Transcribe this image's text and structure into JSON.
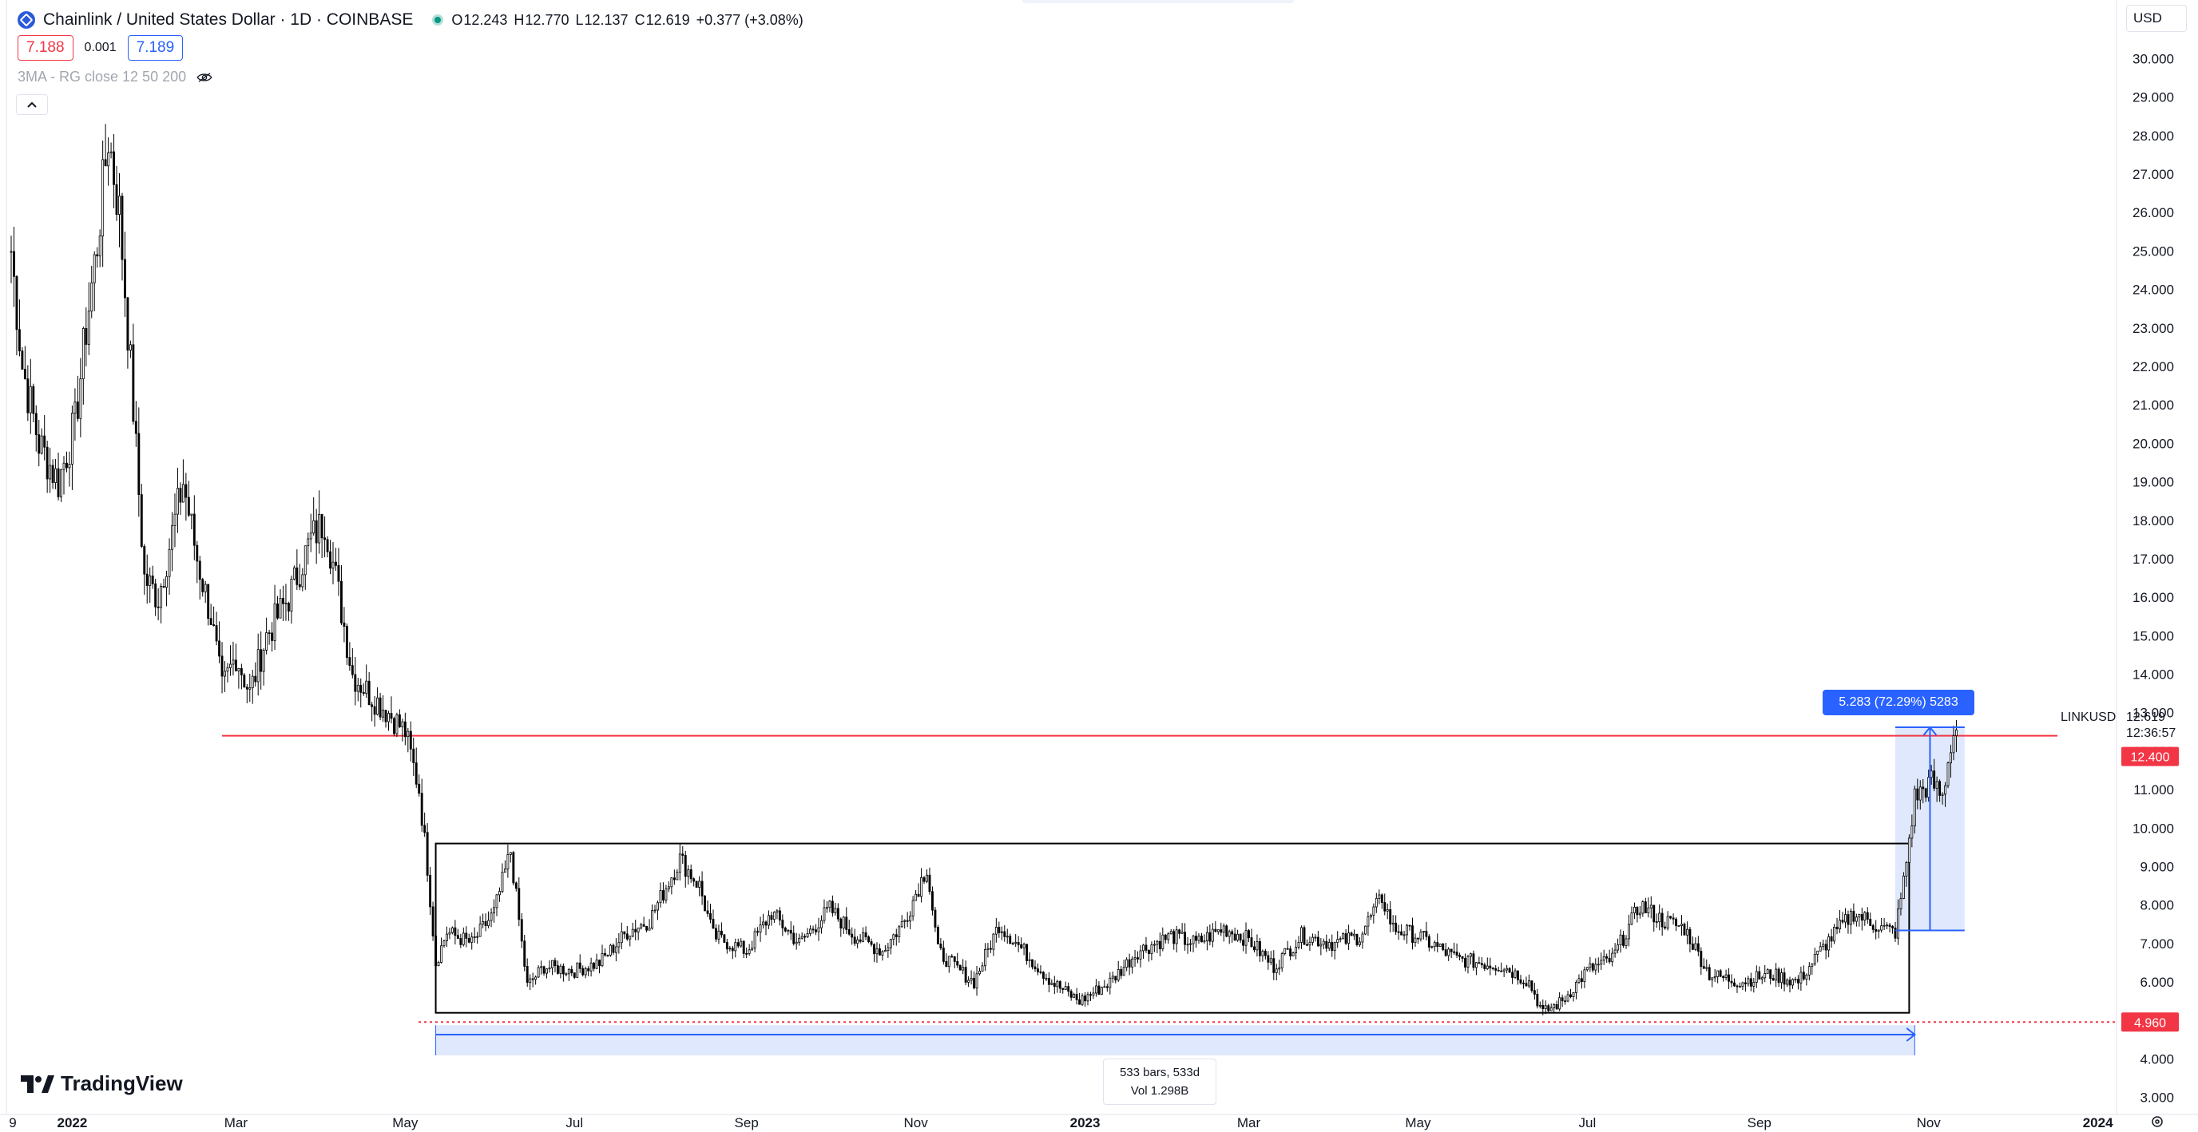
{
  "legend": {
    "symbol_title": "Chainlink / United States Dollar · 1D · COINBASE",
    "ohlc": {
      "o_label": "O",
      "o_value": "12.243",
      "h_label": "H",
      "h_value": "12.770",
      "l_label": "L",
      "l_value": "12.137",
      "c_label": "C",
      "c_value": "12.619",
      "change": "+0.377 (+3.08%)"
    },
    "sell_price": "7.188",
    "spread": "0.001",
    "buy_price": "7.189",
    "indicator": "3MA - RG close 12 50 200"
  },
  "toolbar": {
    "currency": "USD"
  },
  "brand": {
    "name": "TradingView"
  },
  "measurement": {
    "bars_text": "533 bars, 533d",
    "vol_text": "Vol 1.298B",
    "price_change_text": "5.283 (72.29%) 5283"
  },
  "price_axis": {
    "symbol_label": "LINKUSD",
    "last_price": "12.619",
    "countdown": "12:36:57",
    "resistance_label": "12.400",
    "support_label": "4.960"
  },
  "colors": {
    "candle": "#000000",
    "resistance_line": "#f23645",
    "measure_fill": "#dbe5fc",
    "measure_line": "#2962ff",
    "range_box": "#000000"
  },
  "chart_data": {
    "type": "candlestick",
    "symbol": "LINKUSD",
    "exchange": "COINBASE",
    "interval": "1D",
    "ylim": [
      2.6,
      30.9
    ],
    "y_ticks": [
      "3.000",
      "4.000",
      "5.000",
      "6.000",
      "7.000",
      "8.000",
      "9.000",
      "10.000",
      "11.000",
      "12.000",
      "13.000",
      "14.000",
      "15.000",
      "16.000",
      "17.000",
      "18.000",
      "19.000",
      "20.000",
      "21.000",
      "22.000",
      "23.000",
      "24.000",
      "25.000",
      "26.000",
      "27.000",
      "28.000",
      "29.000",
      "30.000"
    ],
    "x_ticks": [
      "9",
      "2022",
      "Mar",
      "May",
      "Jul",
      "Sep",
      "Nov",
      "2023",
      "Mar",
      "May",
      "Jul",
      "Sep",
      "Nov",
      "2024"
    ],
    "date_range": [
      "2021-12-10",
      "2024-01-06"
    ],
    "close_path": [
      [
        "2021-12-10",
        25.0
      ],
      [
        "2021-12-14",
        22.0
      ],
      [
        "2021-12-20",
        20.0
      ],
      [
        "2021-12-27",
        19.0
      ],
      [
        "2022-01-02",
        20.5
      ],
      [
        "2022-01-06",
        23.0
      ],
      [
        "2022-01-10",
        25.2
      ],
      [
        "2022-01-14",
        28.0
      ],
      [
        "2022-01-18",
        26.0
      ],
      [
        "2022-01-22",
        22.0
      ],
      [
        "2022-01-27",
        16.5
      ],
      [
        "2022-02-01",
        16.0
      ],
      [
        "2022-02-07",
        18.0
      ],
      [
        "2022-02-10",
        19.0
      ],
      [
        "2022-02-15",
        17.0
      ],
      [
        "2022-02-20",
        15.5
      ],
      [
        "2022-02-24",
        13.6
      ],
      [
        "2022-03-01",
        14.5
      ],
      [
        "2022-03-06",
        13.5
      ],
      [
        "2022-03-12",
        15.0
      ],
      [
        "2022-03-20",
        16.0
      ],
      [
        "2022-03-28",
        17.5
      ],
      [
        "2022-04-02",
        18.0
      ],
      [
        "2022-04-06",
        16.5
      ],
      [
        "2022-04-12",
        14.0
      ],
      [
        "2022-04-18",
        13.5
      ],
      [
        "2022-04-25",
        13.0
      ],
      [
        "2022-05-01",
        12.5
      ],
      [
        "2022-05-06",
        11.0
      ],
      [
        "2022-05-09",
        9.0
      ],
      [
        "2022-05-12",
        6.5
      ],
      [
        "2022-05-16",
        7.3
      ],
      [
        "2022-05-25",
        7.0
      ],
      [
        "2022-06-02",
        7.8
      ],
      [
        "2022-06-08",
        9.4
      ],
      [
        "2022-06-12",
        7.0
      ],
      [
        "2022-06-14",
        5.9
      ],
      [
        "2022-06-20",
        6.4
      ],
      [
        "2022-07-01",
        6.3
      ],
      [
        "2022-07-10",
        6.5
      ],
      [
        "2022-07-20",
        7.3
      ],
      [
        "2022-07-28",
        7.6
      ],
      [
        "2022-08-08",
        9.2
      ],
      [
        "2022-08-15",
        8.5
      ],
      [
        "2022-08-20",
        7.2
      ],
      [
        "2022-09-01",
        6.8
      ],
      [
        "2022-09-10",
        7.8
      ],
      [
        "2022-09-20",
        7.0
      ],
      [
        "2022-10-01",
        7.9
      ],
      [
        "2022-10-10",
        7.2
      ],
      [
        "2022-10-20",
        6.8
      ],
      [
        "2022-10-28",
        7.6
      ],
      [
        "2022-11-05",
        9.0
      ],
      [
        "2022-11-09",
        6.8
      ],
      [
        "2022-11-15",
        6.4
      ],
      [
        "2022-11-22",
        6.0
      ],
      [
        "2022-12-01",
        7.5
      ],
      [
        "2022-12-10",
        6.8
      ],
      [
        "2022-12-20",
        6.0
      ],
      [
        "2022-12-30",
        5.5
      ],
      [
        "2023-01-10",
        6.0
      ],
      [
        "2023-01-20",
        6.8
      ],
      [
        "2023-02-01",
        7.2
      ],
      [
        "2023-02-10",
        7.0
      ],
      [
        "2023-02-20",
        7.4
      ],
      [
        "2023-03-01",
        7.1
      ],
      [
        "2023-03-10",
        6.4
      ],
      [
        "2023-03-20",
        7.2
      ],
      [
        "2023-04-01",
        7.0
      ],
      [
        "2023-04-10",
        7.2
      ],
      [
        "2023-04-18",
        8.2
      ],
      [
        "2023-04-22",
        7.4
      ],
      [
        "2023-05-01",
        7.2
      ],
      [
        "2023-05-15",
        6.6
      ],
      [
        "2023-06-01",
        6.4
      ],
      [
        "2023-06-10",
        6.0
      ],
      [
        "2023-06-15",
        5.2
      ],
      [
        "2023-06-22",
        5.5
      ],
      [
        "2023-07-01",
        6.3
      ],
      [
        "2023-07-10",
        6.6
      ],
      [
        "2023-07-20",
        8.0
      ],
      [
        "2023-07-28",
        7.6
      ],
      [
        "2023-08-05",
        7.4
      ],
      [
        "2023-08-14",
        6.2
      ],
      [
        "2023-08-25",
        6.0
      ],
      [
        "2023-09-05",
        6.2
      ],
      [
        "2023-09-15",
        6.0
      ],
      [
        "2023-09-25",
        7.0
      ],
      [
        "2023-10-05",
        7.8
      ],
      [
        "2023-10-15",
        7.4
      ],
      [
        "2023-10-20",
        7.3
      ],
      [
        "2023-10-23",
        8.6
      ],
      [
        "2023-10-27",
        10.8
      ],
      [
        "2023-11-02",
        11.2
      ],
      [
        "2023-11-06",
        10.8
      ],
      [
        "2023-11-09",
        12.2
      ],
      [
        "2023-11-11",
        12.62
      ]
    ],
    "annotations": {
      "resistance_price": 12.4,
      "resistance_start": "2022-02-24",
      "support_price": 4.96,
      "range_box": {
        "start": "2022-05-12",
        "end": "2023-10-25",
        "low": 5.2,
        "high": 9.6
      },
      "date_range_measure": {
        "start": "2022-05-12",
        "end": "2023-10-27",
        "bars": 533,
        "volume": "1.298B"
      },
      "price_range_measure": {
        "start": "2023-10-20",
        "end": "2023-11-14",
        "from": 7.34,
        "to": 12.62,
        "change": 5.283,
        "percent": 72.29
      }
    }
  }
}
